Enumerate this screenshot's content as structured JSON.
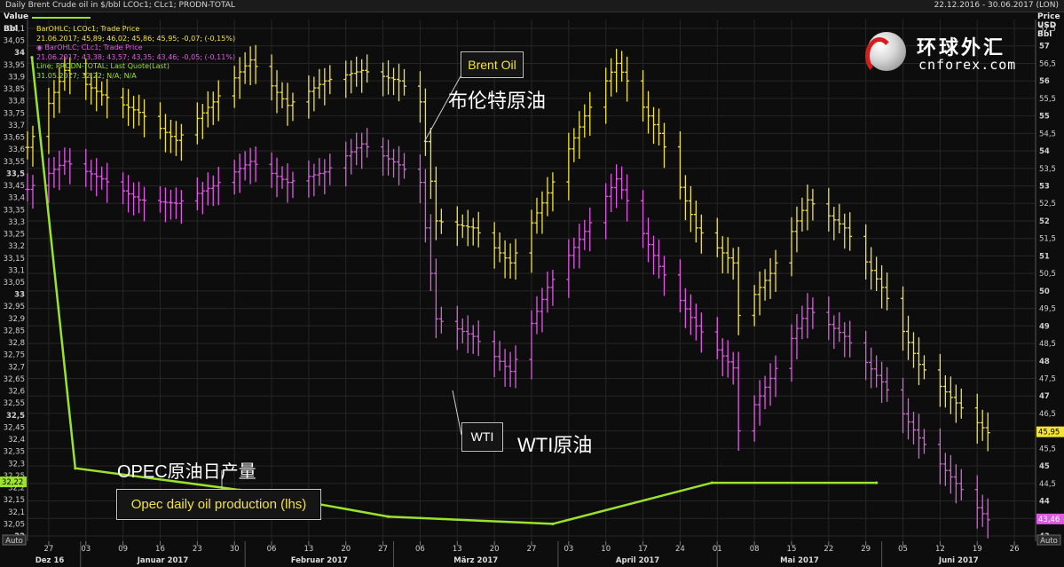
{
  "header": {
    "title": "Daily Brent Crude oil in $/bbl LCOc1; CLc1; PRODN-TOTAL",
    "date_range": "22.12.2016 - 30.06.2017 (LON)"
  },
  "left_axis": {
    "label_line1": "Value",
    "label_line2": "Bbl",
    "ticks": [
      "34,1",
      "34,05",
      "34",
      "33,95",
      "33,9",
      "33,85",
      "33,8",
      "33,75",
      "33,7",
      "33,65",
      "33,6",
      "33,55",
      "33,5",
      "33,45",
      "33,4",
      "33,35",
      "33,3",
      "33,25",
      "33,2",
      "33,15",
      "33,1",
      "33,05",
      "33",
      "32,95",
      "32,9",
      "32,85",
      "32,8",
      "32,75",
      "32,7",
      "32,65",
      "32,6",
      "32,55",
      "32,5",
      "32,45",
      "32,4",
      "32,35",
      "32,3",
      "32,25",
      "32,2",
      "32,15",
      "32,1",
      "32,05",
      "32"
    ],
    "current_badge": "32,22",
    "auto_label": "Auto"
  },
  "right_axis": {
    "label_line1": "Price",
    "label_line2": "USD",
    "label_line3": "Bbl",
    "ticks": [
      "57,5",
      "57",
      "56,5",
      "56",
      "55,5",
      "55",
      "54,5",
      "54",
      "53,5",
      "53",
      "52,5",
      "52",
      "51,5",
      "51",
      "50,5",
      "50",
      "49,5",
      "49",
      "48,5",
      "48",
      "47,5",
      "47",
      "46,5",
      "46",
      "45,5",
      "45",
      "44,5",
      "44",
      "43,5",
      "43"
    ],
    "brent_badge": "45,95",
    "wti_badge": "43,46",
    "auto_label": "Auto"
  },
  "x_axis": {
    "day_ticks": [
      "27",
      "03",
      "09",
      "16",
      "23",
      "30",
      "06",
      "13",
      "20",
      "27",
      "06",
      "13",
      "20",
      "27",
      "03",
      "10",
      "17",
      "24",
      "01",
      "08",
      "15",
      "22",
      "29",
      "05",
      "12",
      "19",
      "26"
    ],
    "month_labels": [
      "Dez 16",
      "Januar 2017",
      "Februar 2017",
      "März 2017",
      "April 2017",
      "Mai 2017",
      "Juni 2017"
    ]
  },
  "legend": {
    "brent_title": "BarOHLC; LCOc1; Trade Price",
    "brent_values": "21.06.2017; 45,89; 46,02; 45,86; 45,95; -0,07; (-0,15%)",
    "wti_title": "BarOHLC; CLc1; Trade Price",
    "wti_values": "21.06.2017; 43,38; 43,57; 43,35; 43,46; -0,05; (-0,11%)",
    "opec_title": "Line; PRODN-TOTAL; Last Quote(Last)",
    "opec_values": "31.05.2017; 32,22; N/A; N/A"
  },
  "callouts": {
    "brent": "Brent Oil",
    "wti": "WTI",
    "opec": "Opec daily oil production (lhs)"
  },
  "annotations": {
    "brent_cn": "布伦特原油",
    "wti_cn": "WTI原油",
    "opec_cn": "OPEC原油日产量"
  },
  "logo": {
    "cn": "环球外汇",
    "en": "cnforex.com"
  },
  "colors": {
    "background": "#0d0d0d",
    "grid": "#262626",
    "brent": "#f2e33c",
    "wti": "#e05ae6",
    "opec": "#9be22d",
    "text": "#cfcfcf"
  },
  "chart_data": {
    "type": "line",
    "title": "Daily Brent Crude oil in $/bbl LCOc1; CLc1; PRODN-TOTAL",
    "x_range": [
      "2016-12-22",
      "2017-06-30"
    ],
    "y_left": {
      "label": "Value Bbl",
      "range": [
        32,
        34.1
      ]
    },
    "y_right": {
      "label": "Price USD Bbl",
      "range": [
        43,
        57.5
      ]
    },
    "series": [
      {
        "name": "BarOHLC; LCOc1; Trade Price",
        "chart_style": "ohlc-bar",
        "axis": "right",
        "x": [
          "2016-12-22",
          "2016-12-29",
          "2017-01-05",
          "2017-01-12",
          "2017-01-19",
          "2017-01-26",
          "2017-02-02",
          "2017-02-09",
          "2017-02-16",
          "2017-02-23",
          "2017-03-02",
          "2017-03-06",
          "2017-03-09",
          "2017-03-16",
          "2017-03-23",
          "2017-03-30",
          "2017-04-06",
          "2017-04-12",
          "2017-04-20",
          "2017-04-27",
          "2017-05-04",
          "2017-05-05",
          "2017-05-11",
          "2017-05-18",
          "2017-05-25",
          "2017-06-01",
          "2017-06-08",
          "2017-06-15",
          "2017-06-21"
        ],
        "values": [
          54.1,
          56.3,
          55.6,
          55.1,
          54.3,
          55.4,
          56.6,
          55.3,
          56.0,
          56.3,
          56.0,
          55.4,
          52.0,
          51.8,
          50.8,
          52.8,
          55.0,
          56.5,
          54.5,
          51.8,
          50.8,
          49.3,
          50.5,
          52.6,
          51.8,
          50.1,
          47.9,
          46.8,
          45.95
        ]
      },
      {
        "name": "BarOHLC; CLc1; Trade Price",
        "chart_style": "ohlc-bar",
        "axis": "right",
        "x": [
          "2016-12-22",
          "2016-12-29",
          "2017-01-05",
          "2017-01-12",
          "2017-01-19",
          "2017-01-26",
          "2017-02-02",
          "2017-02-09",
          "2017-02-16",
          "2017-02-23",
          "2017-03-02",
          "2017-03-06",
          "2017-03-09",
          "2017-03-16",
          "2017-03-23",
          "2017-03-30",
          "2017-04-06",
          "2017-04-12",
          "2017-04-20",
          "2017-04-27",
          "2017-05-04",
          "2017-05-05",
          "2017-05-11",
          "2017-05-18",
          "2017-05-25",
          "2017-06-01",
          "2017-06-08",
          "2017-06-15",
          "2017-06-21"
        ],
        "values": [
          52.9,
          53.7,
          53.2,
          52.6,
          52.5,
          53.0,
          53.7,
          53.1,
          53.4,
          54.2,
          53.6,
          53.1,
          49.2,
          48.7,
          47.7,
          50.1,
          51.7,
          53.2,
          50.7,
          49.0,
          47.8,
          46.0,
          47.5,
          49.5,
          48.7,
          47.4,
          45.8,
          44.5,
          43.46
        ]
      },
      {
        "name": "Line; PRODN-TOTAL; Last Quote(Last)",
        "chart_style": "line",
        "axis": "left",
        "x": [
          "2016-11-30",
          "2016-12-31",
          "2017-01-31",
          "2017-02-28",
          "2017-03-31",
          "2017-04-30",
          "2017-05-31"
        ],
        "values": [
          33.98,
          32.28,
          32.19,
          32.08,
          32.05,
          32.22,
          32.22
        ]
      }
    ]
  }
}
